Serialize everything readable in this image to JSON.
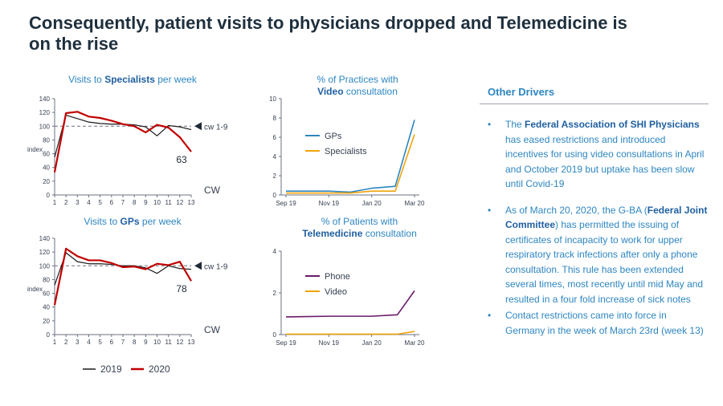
{
  "title": "Consequently, patient visits to physicians dropped and Telemedicine is on the rise",
  "charts": {
    "specialists_title": {
      "pre": "Visits to ",
      "bold": "Specialists",
      "post": " per week"
    },
    "gps_title": {
      "pre": "Visits to ",
      "bold": "GPs",
      "post": " per week"
    },
    "video_title": {
      "line1": "% of Practices with",
      "bold": "Video",
      "post": " consultation"
    },
    "tele_title": {
      "line1": "% of Patients with",
      "bold": "Telemedicine",
      "post": " consultation"
    }
  },
  "chart_data": [
    {
      "type": "line",
      "title": "Visits to Specialists per week",
      "xlabel": "CW",
      "ylabel": "index",
      "x": [
        1,
        2,
        3,
        4,
        5,
        6,
        7,
        8,
        9,
        10,
        11,
        12,
        13
      ],
      "ylim": [
        0,
        140
      ],
      "yticks": [
        0,
        20,
        40,
        60,
        80,
        100,
        120,
        140
      ],
      "series": [
        {
          "name": "2019",
          "color": "#1a1a1a",
          "values": [
            55,
            116,
            111,
            106,
            104,
            103,
            103,
            102,
            99,
            86,
            101,
            99,
            95
          ]
        },
        {
          "name": "2020",
          "color": "#c00000",
          "values": [
            33,
            119,
            121,
            114,
            112,
            108,
            103,
            100,
            91,
            102,
            98,
            84,
            63
          ]
        }
      ],
      "reference": {
        "value": 100,
        "label": "cw 1-9"
      },
      "end_label": "63"
    },
    {
      "type": "line",
      "title": "Visits to GPs per week",
      "xlabel": "CW",
      "ylabel": "index",
      "x": [
        1,
        2,
        3,
        4,
        5,
        6,
        7,
        8,
        9,
        10,
        11,
        12,
        13
      ],
      "ylim": [
        0,
        140
      ],
      "yticks": [
        0,
        20,
        40,
        60,
        80,
        100,
        120,
        140
      ],
      "series": [
        {
          "name": "2019",
          "color": "#1a1a1a",
          "values": [
            72,
            119,
            106,
            103,
            103,
            102,
            100,
            100,
            97,
            89,
            100,
            96,
            95
          ]
        },
        {
          "name": "2020",
          "color": "#c00000",
          "values": [
            43,
            125,
            114,
            108,
            108,
            104,
            98,
            99,
            95,
            103,
            101,
            106,
            78
          ]
        }
      ],
      "reference": {
        "value": 100,
        "label": "cw 1-9"
      },
      "end_label": "78"
    },
    {
      "type": "line",
      "title": "% of Practices with Video consultation",
      "x_ticks": [
        "Sep 19",
        "Nov 19",
        "Jan 20",
        "Mar 20"
      ],
      "ylim": [
        0,
        10
      ],
      "yticks": [
        0,
        2,
        4,
        6,
        8,
        10
      ],
      "series": [
        {
          "name": "GPs",
          "color": "#2e86c1",
          "points": [
            [
              0,
              0.4
            ],
            [
              1,
              0.4
            ],
            [
              1.5,
              0.3
            ],
            [
              2,
              0.7
            ],
            [
              2.55,
              0.9
            ],
            [
              3,
              7.8
            ]
          ]
        },
        {
          "name": "Specialists",
          "color": "#f0a30a",
          "points": [
            [
              0,
              0.2
            ],
            [
              1,
              0.2
            ],
            [
              1.5,
              0.2
            ],
            [
              2,
              0.4
            ],
            [
              2.55,
              0.4
            ],
            [
              3,
              6.3
            ]
          ]
        }
      ]
    },
    {
      "type": "line",
      "title": "% of Patients with Telemedicine consultation",
      "x_ticks": [
        "Sep 19",
        "Nov 19",
        "Jan 20",
        "Mar 20"
      ],
      "ylim": [
        0,
        4
      ],
      "yticks": [
        0,
        2,
        4
      ],
      "series": [
        {
          "name": "Phone",
          "color": "#6a1b6a",
          "points": [
            [
              0,
              0.85
            ],
            [
              1,
              0.88
            ],
            [
              2,
              0.88
            ],
            [
              2.6,
              0.95
            ],
            [
              3,
              2.1
            ]
          ]
        },
        {
          "name": "Video",
          "color": "#f0a30a",
          "points": [
            [
              0,
              0.02
            ],
            [
              1,
              0.02
            ],
            [
              2,
              0.02
            ],
            [
              2.6,
              0.02
            ],
            [
              3,
              0.15
            ]
          ]
        }
      ]
    }
  ],
  "legend_bottom": [
    "2019",
    "2020"
  ],
  "drivers": {
    "heading": "Other Drivers",
    "bullet": "•",
    "items": [
      [
        {
          "t": "The ",
          "b": false
        },
        {
          "t": "Federal Association of SHI Physicians",
          "b": true
        },
        {
          "t": " has eased restrictions and introduced incentives for using video consultations in April and October 2019 but uptake has been slow until Covid-19",
          "b": false
        }
      ],
      [
        {
          "t": "As of March 20, 2020, the G-BA (",
          "b": false
        },
        {
          "t": "Federal Joint Committee",
          "b": true
        },
        {
          "t": ") has permitted the issuing of certificates of incapacity to work for upper respiratory track infections after only a phone consultation. This rule has been extended several times, most recently until mid May and resulted in a four fold increase of sick notes",
          "b": false
        }
      ],
      [
        {
          "t": "Contact restrictions came into force in Germany in the week of March 23rd (week 13)",
          "b": false
        }
      ]
    ]
  }
}
